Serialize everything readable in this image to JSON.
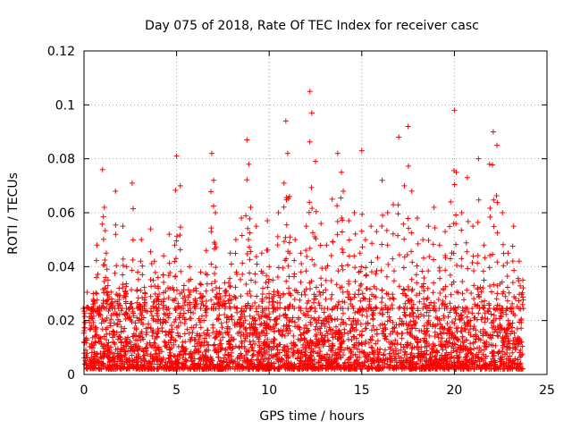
{
  "chart_data": {
    "type": "scatter",
    "title": "Day 075 of 2018, Rate Of TEC Index for receiver casc",
    "xlabel": "GPS time / hours",
    "ylabel": "ROTI / TECUs",
    "xlim": [
      0,
      25
    ],
    "ylim": [
      0,
      0.12
    ],
    "x_ticks": [
      0,
      5,
      10,
      15,
      20,
      25
    ],
    "x_tick_labels": [
      "0",
      "5",
      "10",
      "15",
      "20",
      "25"
    ],
    "y_ticks": [
      0,
      0.02,
      0.04,
      0.06,
      0.08,
      0.1,
      0.12
    ],
    "y_tick_labels": [
      "0",
      "0.02",
      "0.04",
      "0.06",
      "0.08",
      "0.1",
      "0.12"
    ],
    "grid": true,
    "marker": "+",
    "color": "#ff0000",
    "series": [
      {
        "name": "ROTI",
        "x": [
          0.0,
          0.2,
          0.4,
          0.5,
          0.7,
          0.8,
          1.0,
          1.1,
          1.2,
          1.3,
          1.5,
          1.7,
          1.9,
          2.1,
          2.3,
          2.6,
          2.9,
          3.0,
          3.1,
          3.3,
          3.6,
          3.8,
          4.0,
          4.3,
          4.6,
          4.9,
          5.0,
          5.2,
          5.4,
          5.7,
          6.0,
          6.3,
          6.6,
          6.9,
          7.0,
          7.1,
          7.3,
          7.6,
          7.9,
          8.2,
          8.5,
          8.8,
          8.9,
          9.0,
          9.3,
          9.6,
          9.9,
          10.0,
          10.2,
          10.5,
          10.8,
          10.9,
          11.0,
          11.1,
          11.4,
          11.7,
          12.0,
          12.2,
          12.3,
          12.5,
          12.8,
          13.1,
          13.4,
          13.7,
          13.9,
          14.0,
          14.3,
          14.6,
          14.9,
          15.0,
          15.2,
          15.5,
          15.8,
          16.1,
          16.4,
          16.7,
          17.0,
          17.3,
          17.5,
          17.7,
          18.0,
          18.3,
          18.6,
          18.9,
          19.2,
          19.5,
          19.8,
          20.0,
          20.1,
          20.4,
          20.7,
          21.0,
          21.3,
          21.6,
          21.9,
          22.1,
          22.3,
          22.6,
          22.9,
          23.2,
          23.5,
          23.7
        ],
        "y": [
          0.012,
          0.025,
          0.018,
          0.03,
          0.048,
          0.022,
          0.076,
          0.062,
          0.045,
          0.035,
          0.028,
          0.068,
          0.032,
          0.055,
          0.04,
          0.071,
          0.038,
          0.026,
          0.05,
          0.03,
          0.054,
          0.042,
          0.036,
          0.044,
          0.052,
          0.048,
          0.081,
          0.07,
          0.033,
          0.04,
          0.028,
          0.038,
          0.046,
          0.082,
          0.072,
          0.06,
          0.03,
          0.034,
          0.045,
          0.05,
          0.058,
          0.087,
          0.078,
          0.062,
          0.055,
          0.045,
          0.057,
          0.04,
          0.035,
          0.06,
          0.071,
          0.094,
          0.082,
          0.066,
          0.05,
          0.045,
          0.055,
          0.105,
          0.097,
          0.079,
          0.056,
          0.048,
          0.065,
          0.082,
          0.075,
          0.068,
          0.057,
          0.06,
          0.045,
          0.083,
          0.05,
          0.055,
          0.053,
          0.072,
          0.06,
          0.063,
          0.088,
          0.07,
          0.092,
          0.068,
          0.058,
          0.05,
          0.055,
          0.062,
          0.048,
          0.053,
          0.064,
          0.098,
          0.075,
          0.06,
          0.073,
          0.055,
          0.08,
          0.048,
          0.078,
          0.09,
          0.085,
          0.06,
          0.045,
          0.055,
          0.042,
          0.035
        ],
        "baseline_min": 0.002,
        "baseline_max": 0.035
      }
    ]
  }
}
